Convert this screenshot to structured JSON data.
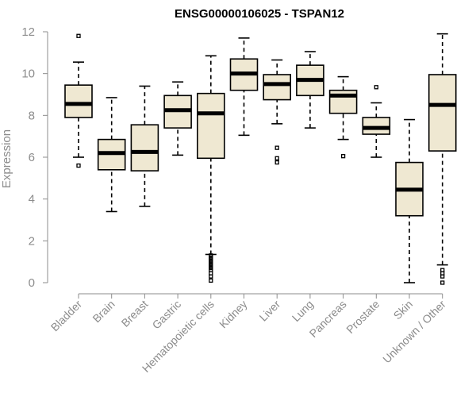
{
  "chart_data": {
    "type": "boxplot",
    "title": "ENSG00000106025 - TSPAN12",
    "xlabel": "",
    "ylabel": "Expression",
    "ylim": [
      0,
      12
    ],
    "yticks": [
      0,
      2,
      4,
      6,
      8,
      10,
      12
    ],
    "colors": {
      "box_fill": "#efe8d2",
      "stroke": "#000000",
      "axis": "#8c8c8c"
    },
    "categories": [
      "Bladder",
      "Brain",
      "Breast",
      "Gastric",
      "Hematopoietic cells",
      "Kidney",
      "Liver",
      "Lung",
      "Pancreas",
      "Prostate",
      "Skin",
      "Unknown / Other"
    ],
    "boxes": [
      {
        "name": "Bladder",
        "whislo": 6.0,
        "q1": 7.9,
        "med": 8.55,
        "q3": 9.45,
        "whishi": 10.55,
        "fliers": [
          11.8,
          5.6
        ]
      },
      {
        "name": "Brain",
        "whislo": 3.4,
        "q1": 5.4,
        "med": 6.2,
        "q3": 6.85,
        "whishi": 8.85,
        "fliers": []
      },
      {
        "name": "Breast",
        "whislo": 3.65,
        "q1": 5.35,
        "med": 6.25,
        "q3": 7.55,
        "whishi": 9.4,
        "fliers": []
      },
      {
        "name": "Gastric",
        "whislo": 6.1,
        "q1": 7.4,
        "med": 8.25,
        "q3": 8.95,
        "whishi": 9.6,
        "fliers": []
      },
      {
        "name": "Hematopoietic cells",
        "whislo": 1.35,
        "q1": 5.95,
        "med": 8.1,
        "q3": 9.05,
        "whishi": 10.85,
        "fliers": [
          1.3,
          1.2,
          1.1,
          1.0,
          0.9,
          0.8,
          0.7,
          0.6,
          0.45,
          0.3,
          0.1
        ]
      },
      {
        "name": "Kidney",
        "whislo": 7.05,
        "q1": 9.2,
        "med": 10.0,
        "q3": 10.7,
        "whishi": 11.7,
        "fliers": []
      },
      {
        "name": "Liver",
        "whislo": 7.6,
        "q1": 8.75,
        "med": 9.5,
        "q3": 9.95,
        "whishi": 10.65,
        "fliers": [
          6.45,
          5.95,
          5.75
        ]
      },
      {
        "name": "Lung",
        "whislo": 7.4,
        "q1": 8.95,
        "med": 9.7,
        "q3": 10.4,
        "whishi": 11.05,
        "fliers": []
      },
      {
        "name": "Pancreas",
        "whislo": 6.85,
        "q1": 8.1,
        "med": 8.95,
        "q3": 9.2,
        "whishi": 9.85,
        "fliers": [
          6.05
        ]
      },
      {
        "name": "Prostate",
        "whislo": 6.0,
        "q1": 7.1,
        "med": 7.4,
        "q3": 7.9,
        "whishi": 8.6,
        "fliers": [
          9.35
        ]
      },
      {
        "name": "Skin",
        "whislo": 0.0,
        "q1": 3.2,
        "med": 4.45,
        "q3": 5.75,
        "whishi": 7.8,
        "fliers": []
      },
      {
        "name": "Unknown / Other",
        "whislo": 0.85,
        "q1": 6.3,
        "med": 8.5,
        "q3": 9.95,
        "whishi": 11.9,
        "fliers": [
          0.6,
          0.45,
          0.3,
          0.0
        ]
      }
    ]
  }
}
